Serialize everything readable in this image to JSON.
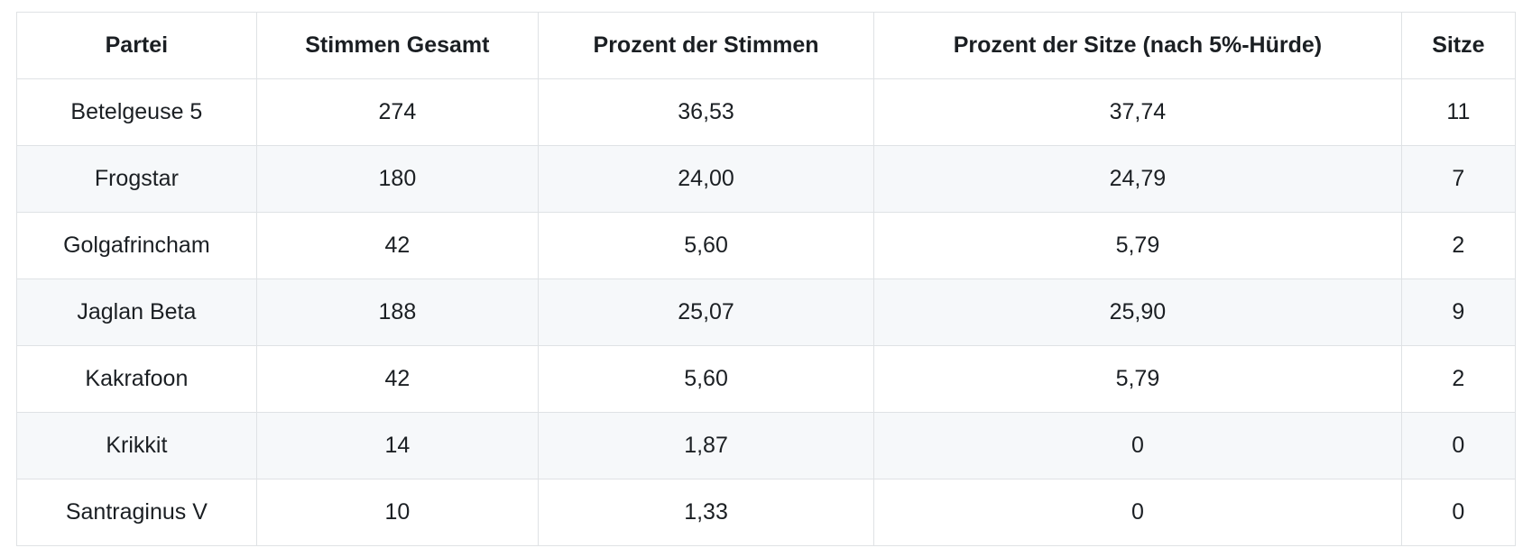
{
  "theme": {
    "border_color": "#dfe2e5",
    "stripe_color": "#f6f8fa",
    "text_color": "#1b1f23",
    "background_color": "#ffffff"
  },
  "table": {
    "columns": [
      "Partei",
      "Stimmen Gesamt",
      "Prozent der Stimmen",
      "Prozent der Sitze (nach 5%-Hürde)",
      "Sitze"
    ],
    "rows": [
      {
        "partei": "Betelgeuse 5",
        "stimmen_gesamt": "274",
        "prozent_stimmen": "36,53",
        "prozent_sitze": "37,74",
        "sitze": "11"
      },
      {
        "partei": "Frogstar",
        "stimmen_gesamt": "180",
        "prozent_stimmen": "24,00",
        "prozent_sitze": "24,79",
        "sitze": "7"
      },
      {
        "partei": "Golgafrincham",
        "stimmen_gesamt": "42",
        "prozent_stimmen": "5,60",
        "prozent_sitze": "5,79",
        "sitze": "2"
      },
      {
        "partei": "Jaglan Beta",
        "stimmen_gesamt": "188",
        "prozent_stimmen": "25,07",
        "prozent_sitze": "25,90",
        "sitze": "9"
      },
      {
        "partei": "Kakrafoon",
        "stimmen_gesamt": "42",
        "prozent_stimmen": "5,60",
        "prozent_sitze": "5,79",
        "sitze": "2"
      },
      {
        "partei": "Krikkit",
        "stimmen_gesamt": "14",
        "prozent_stimmen": "1,87",
        "prozent_sitze": "0",
        "sitze": "0"
      },
      {
        "partei": "Santraginus V",
        "stimmen_gesamt": "10",
        "prozent_stimmen": "1,33",
        "prozent_sitze": "0",
        "sitze": "0"
      }
    ]
  }
}
